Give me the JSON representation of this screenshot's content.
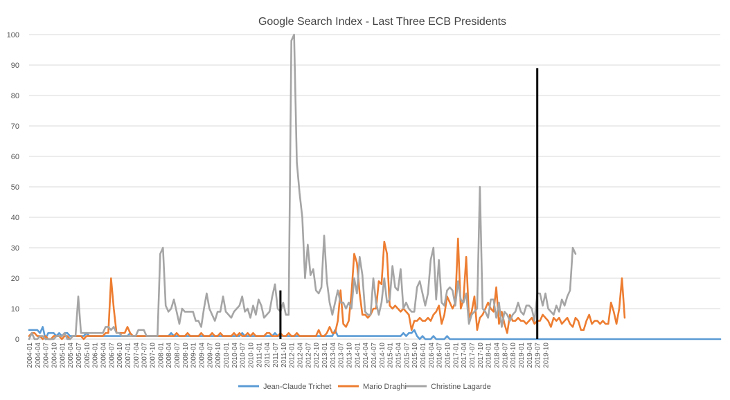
{
  "chart_data": {
    "type": "line",
    "title": "Google Search Index - Last Three ECB Presidents",
    "xlabel": "",
    "ylabel": "",
    "ylim": [
      0,
      100
    ],
    "yticks": [
      0,
      10,
      20,
      30,
      40,
      50,
      60,
      70,
      80,
      90,
      100
    ],
    "grid": true,
    "legend_position": "bottom",
    "start": "2004-01",
    "x_tick_labels": [
      "2004-01",
      "2004-04",
      "2004-07",
      "2004-10",
      "2005-01",
      "2005-04",
      "2005-07",
      "2005-10",
      "2006-01",
      "2006-04",
      "2006-07",
      "2006-10",
      "2007-01",
      "2007-04",
      "2007-07",
      "2007-10",
      "2008-01",
      "2008-04",
      "2008-07",
      "2008-10",
      "2009-01",
      "2009-04",
      "2009-07",
      "2009-10",
      "2010-01",
      "2010-04",
      "2010-07",
      "2010-10",
      "2011-01",
      "2011-04",
      "2011-07",
      "2011-10",
      "2012-01",
      "2012-04",
      "2012-07",
      "2012-10",
      "2013-01",
      "2013-04",
      "2013-07",
      "2013-10",
      "2014-01",
      "2014-04",
      "2014-07",
      "2014-10",
      "2015-01",
      "2015-04",
      "2015-07",
      "2015-10",
      "2016-01",
      "2016-04",
      "2016-07",
      "2016-10",
      "2017-01",
      "2017-04",
      "2017-07",
      "2017-10",
      "2018-01",
      "2018-04",
      "2018-07",
      "2018-10",
      "2019-01",
      "2019-04",
      "2019-07",
      "2019-10"
    ],
    "series": [
      {
        "name": "Jean-Claude Trichet",
        "color": "#5B9BD5",
        "values": [
          3,
          3,
          3,
          3,
          2,
          4,
          0,
          2,
          2,
          2,
          1,
          2,
          1,
          2,
          2,
          1,
          1,
          1,
          1,
          1,
          1,
          2,
          1,
          1,
          1,
          1,
          1,
          1,
          1,
          1,
          1,
          1,
          1,
          1,
          1,
          1,
          1,
          2,
          1,
          1,
          1,
          1,
          1,
          1,
          1,
          1,
          1,
          1,
          1,
          1,
          1,
          1,
          2,
          1,
          1,
          1,
          1,
          1,
          1,
          1,
          1,
          1,
          1,
          1,
          1,
          1,
          1,
          1,
          1,
          1,
          1,
          1,
          1,
          1,
          1,
          1,
          1,
          1,
          2,
          1,
          1,
          1,
          1,
          1,
          1,
          1,
          1,
          1,
          1,
          1,
          2,
          1,
          1,
          1,
          1,
          1,
          1,
          1,
          1,
          1,
          1,
          1,
          1,
          1,
          1,
          1,
          1,
          1,
          1,
          1,
          1,
          1,
          3,
          1,
          1,
          1,
          1,
          1,
          1,
          1,
          1,
          1,
          1,
          1,
          1,
          1,
          1,
          1,
          1,
          1,
          1,
          1,
          1,
          1,
          1,
          1,
          1,
          2,
          1,
          2,
          2,
          3,
          1,
          0,
          1,
          0,
          0,
          0,
          1,
          0,
          0,
          0,
          0,
          1,
          0,
          0,
          0,
          0,
          0,
          0,
          0,
          0,
          0,
          0,
          0,
          0,
          0,
          0,
          0,
          0,
          0,
          0,
          0,
          0,
          0,
          0,
          0,
          0,
          0,
          0,
          0,
          0,
          0,
          0,
          0,
          0,
          0,
          0,
          0,
          0,
          0,
          0,
          0,
          0,
          0,
          0,
          0,
          0,
          0,
          0,
          0,
          0,
          0,
          0,
          0,
          0,
          0,
          0,
          0,
          0,
          0,
          0,
          0,
          0,
          0,
          0,
          0,
          0,
          0,
          0,
          0,
          0,
          0,
          0,
          0,
          0,
          0,
          0,
          0,
          0,
          0,
          0,
          0,
          0,
          0,
          0,
          0,
          0,
          0,
          0,
          0,
          0,
          0,
          0,
          0,
          0,
          0,
          0,
          0,
          0,
          0,
          0,
          0,
          0
        ]
      },
      {
        "name": "Mario Draghi",
        "color": "#ED7D31",
        "values": [
          1,
          2,
          2,
          1,
          1,
          0,
          1,
          0,
          0,
          1,
          1,
          1,
          0,
          1,
          1,
          0,
          1,
          1,
          1,
          1,
          0,
          1,
          1,
          1,
          1,
          1,
          1,
          1,
          2,
          2,
          20,
          10,
          2,
          2,
          2,
          2,
          4,
          2,
          1,
          1,
          1,
          1,
          1,
          1,
          1,
          1,
          1,
          1,
          1,
          1,
          1,
          1,
          1,
          1,
          2,
          1,
          1,
          1,
          2,
          1,
          1,
          1,
          1,
          2,
          1,
          1,
          1,
          2,
          1,
          1,
          2,
          1,
          1,
          1,
          1,
          2,
          1,
          2,
          1,
          1,
          2,
          1,
          2,
          1,
          1,
          1,
          1,
          2,
          2,
          1,
          1,
          1,
          2,
          1,
          1,
          2,
          1,
          1,
          2,
          1,
          1,
          1,
          1,
          1,
          1,
          1,
          3,
          1,
          1,
          2,
          4,
          2,
          2,
          6,
          16,
          5,
          4,
          6,
          15,
          28,
          25,
          15,
          8,
          8,
          7,
          8,
          10,
          10,
          19,
          18,
          32,
          28,
          11,
          10,
          11,
          10,
          9,
          10,
          9,
          8,
          3,
          6,
          6,
          7,
          6,
          6,
          7,
          6,
          8,
          9,
          11,
          5,
          8,
          14,
          12,
          10,
          12,
          33,
          10,
          13,
          27,
          7,
          9,
          14,
          3,
          7,
          8,
          10,
          12,
          10,
          9,
          17,
          5,
          9,
          5,
          2,
          8,
          6,
          6,
          7,
          6,
          6,
          5,
          6,
          7,
          5,
          6,
          6,
          8,
          7,
          6,
          4,
          7,
          6,
          7,
          5,
          6,
          7,
          5,
          4,
          7,
          6,
          3,
          3,
          6,
          8,
          5,
          6,
          6,
          5,
          6,
          5,
          5,
          12,
          9,
          5,
          10,
          20,
          7
        ]
      },
      {
        "name": "Christine Lagarde",
        "color": "#A5A5A5",
        "values": [
          0,
          2,
          0,
          0,
          1,
          1,
          0,
          0,
          0,
          0,
          1,
          1,
          1,
          2,
          0,
          0,
          1,
          1,
          14,
          2,
          2,
          2,
          2,
          2,
          2,
          2,
          2,
          2,
          4,
          4,
          3,
          4,
          2,
          2,
          1,
          1,
          1,
          1,
          1,
          1,
          3,
          3,
          3,
          1,
          1,
          1,
          1,
          1,
          28,
          30,
          11,
          9,
          10,
          13,
          9,
          5,
          10,
          9,
          9,
          9,
          9,
          6,
          6,
          4,
          10,
          15,
          10,
          8,
          6,
          9,
          9,
          14,
          9,
          8,
          7,
          9,
          10,
          11,
          14,
          9,
          10,
          7,
          11,
          8,
          13,
          11,
          7,
          8,
          9,
          14,
          18,
          10,
          9,
          12,
          8,
          8,
          98,
          100,
          58,
          48,
          40,
          20,
          31,
          21,
          23,
          16,
          15,
          17,
          34,
          19,
          12,
          8,
          12,
          16,
          12,
          12,
          10,
          12,
          10,
          20,
          15,
          27,
          21,
          9,
          8,
          8,
          20,
          12,
          8,
          12,
          20,
          12,
          13,
          24,
          17,
          16,
          23,
          10,
          12,
          10,
          9,
          9,
          17,
          19,
          15,
          11,
          15,
          26,
          30,
          13,
          26,
          12,
          11,
          16,
          17,
          16,
          11,
          19,
          13,
          12,
          15,
          5,
          8,
          9,
          10,
          50,
          10,
          9,
          7,
          13,
          13,
          7,
          12,
          4,
          9,
          8,
          6,
          8,
          9,
          12,
          9,
          8,
          11,
          11,
          10,
          6,
          15,
          15,
          11,
          15,
          10,
          9,
          8,
          11,
          9,
          13,
          11,
          14,
          16,
          30,
          28
        ]
      }
    ],
    "annotations": {
      "markers": [
        {
          "index": 92,
          "label": "",
          "value": 16
        },
        {
          "index": 186,
          "label": "",
          "value": 89
        }
      ]
    }
  }
}
